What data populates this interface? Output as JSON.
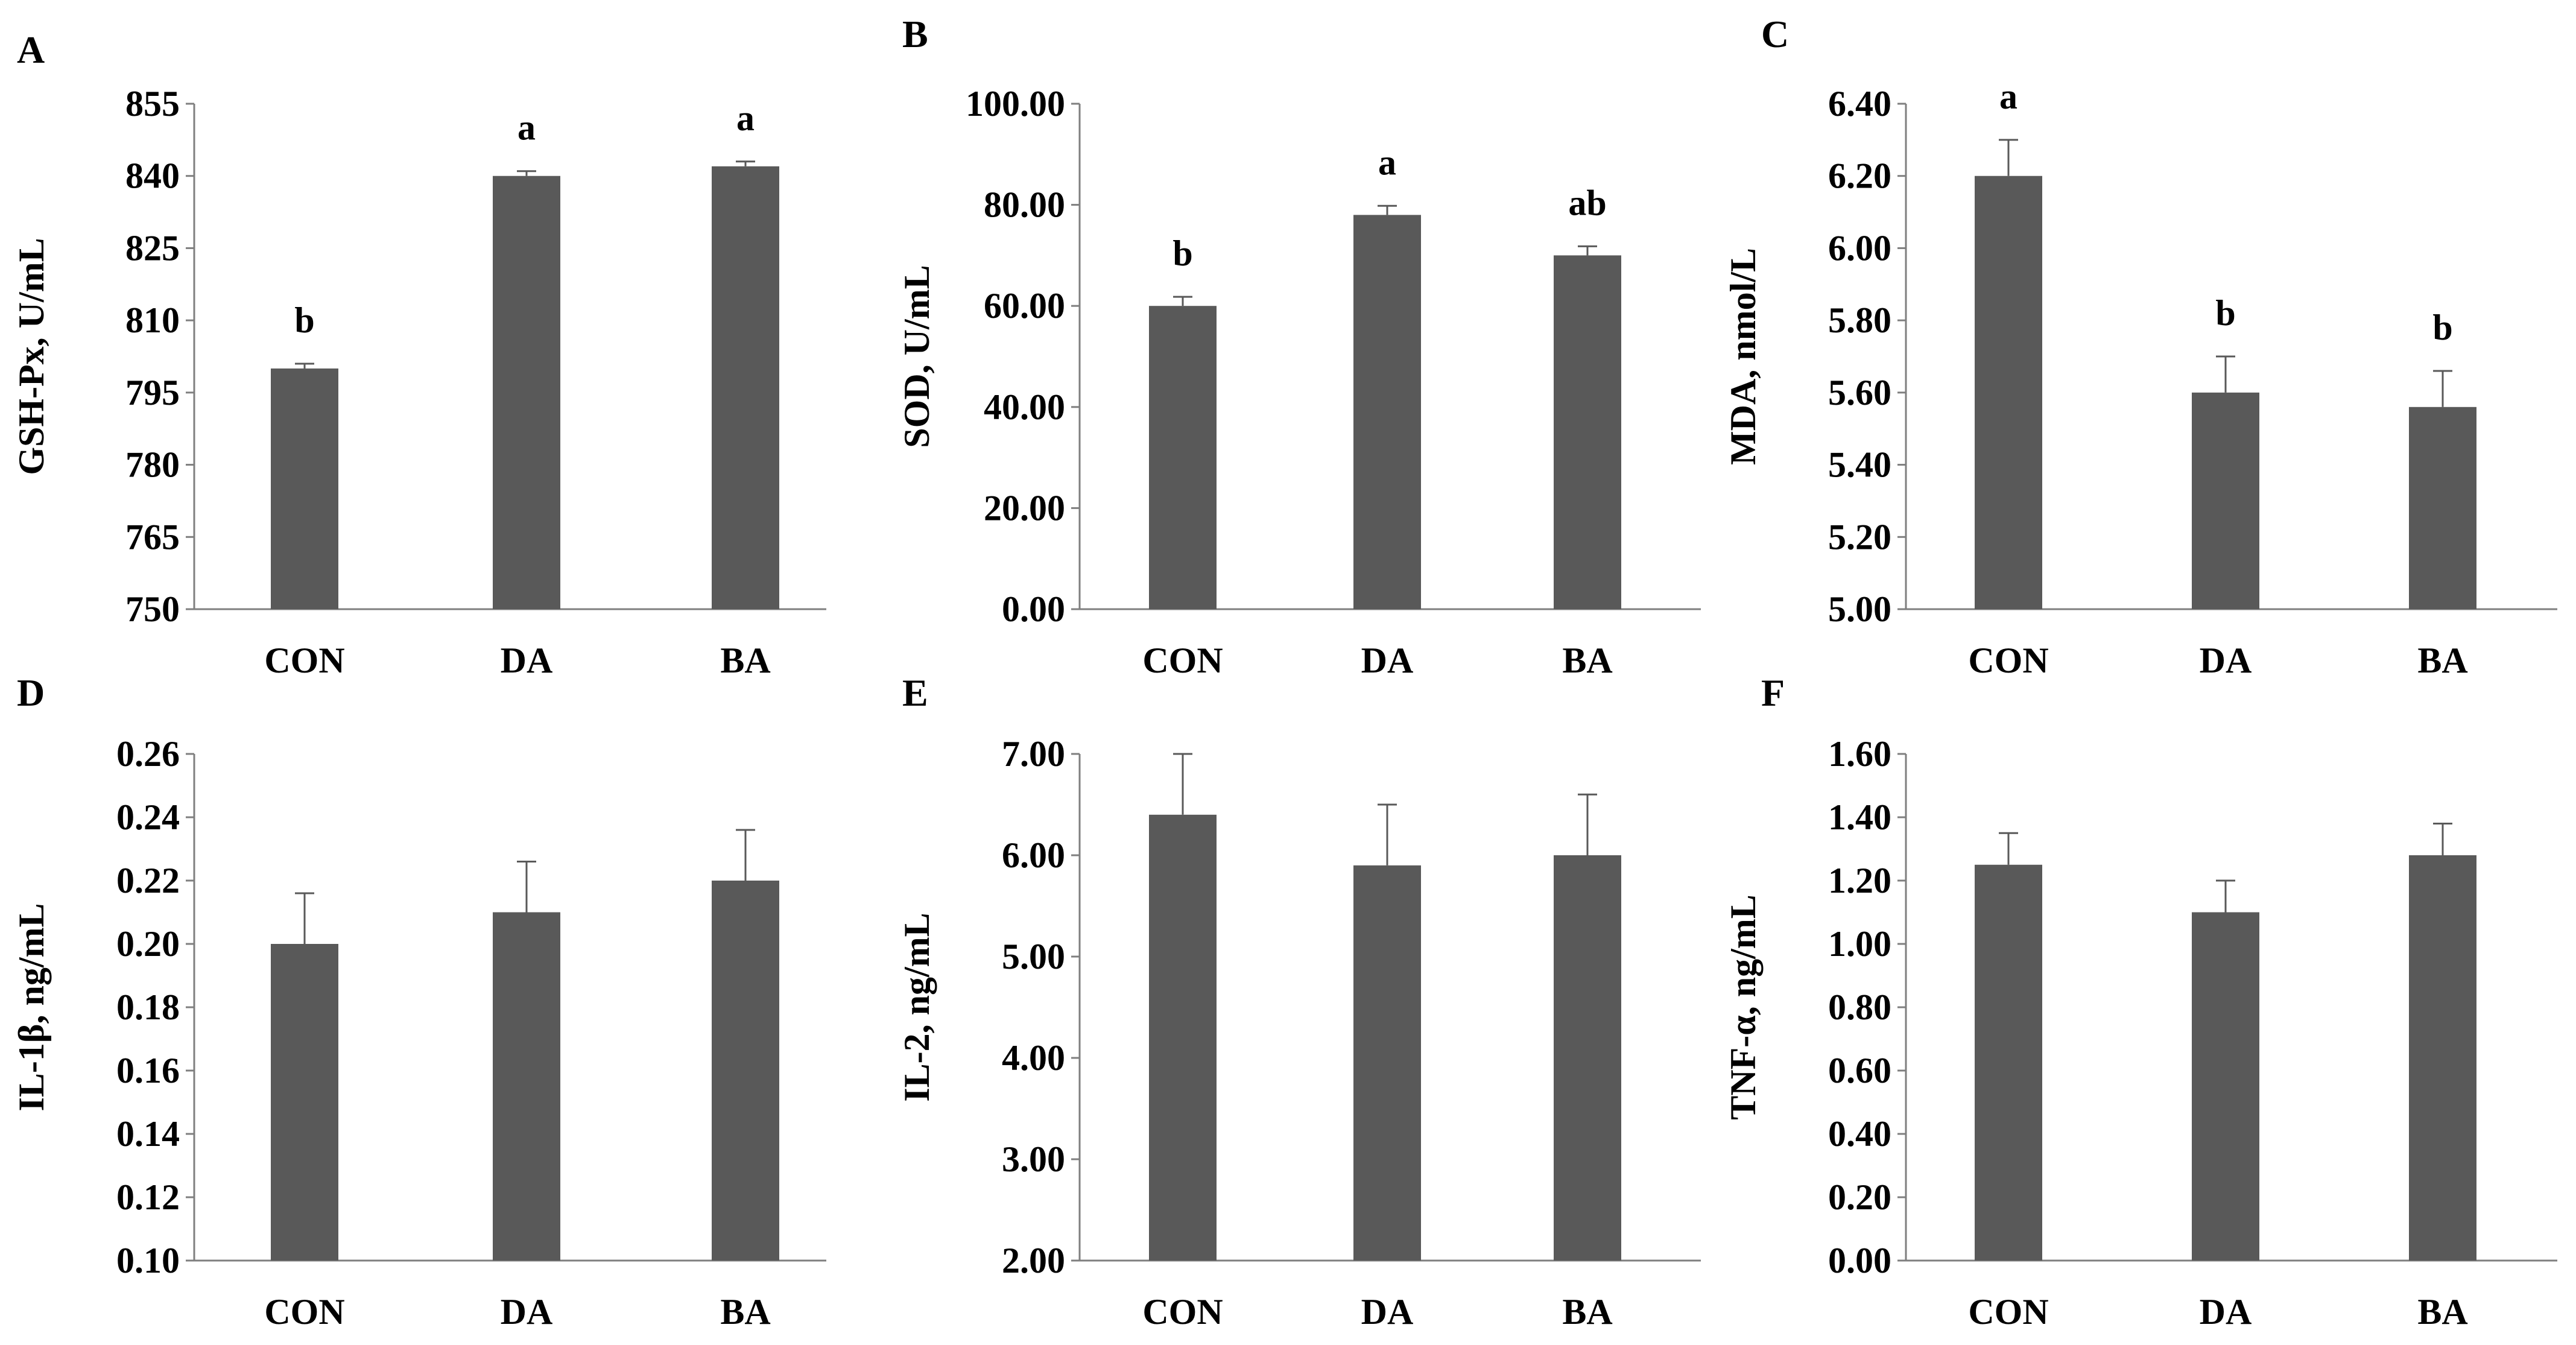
{
  "figure": {
    "bar_color": "#595959",
    "axis_color": "#7f7f7f",
    "errorbar_color": "#595959",
    "text_color": "#000000"
  },
  "chart_data": [
    {
      "panel": "A",
      "type": "bar",
      "categories": [
        "CON",
        "DA",
        "BA"
      ],
      "values": [
        800,
        840,
        842
      ],
      "errors": [
        1,
        1,
        1
      ],
      "letters": [
        "b",
        "a",
        "a"
      ],
      "ylabel": "GSH-Px, U/mL",
      "ylim": [
        750,
        855
      ],
      "yticks": [
        "750",
        "765",
        "780",
        "795",
        "810",
        "825",
        "840",
        "855"
      ]
    },
    {
      "panel": "B",
      "type": "bar",
      "categories": [
        "CON",
        "DA",
        "BA"
      ],
      "values": [
        60.0,
        78.0,
        70.0
      ],
      "errors": [
        1.8,
        1.8,
        1.8
      ],
      "letters": [
        "b",
        "a",
        "ab"
      ],
      "ylabel": "SOD, U/mL",
      "ylim": [
        0,
        100
      ],
      "yticks": [
        "0.00",
        "20.00",
        "40.00",
        "60.00",
        "80.00",
        "100.00"
      ]
    },
    {
      "panel": "C",
      "type": "bar",
      "categories": [
        "CON",
        "DA",
        "BA"
      ],
      "values": [
        6.2,
        5.6,
        5.56
      ],
      "errors": [
        0.1,
        0.1,
        0.1
      ],
      "letters": [
        "a",
        "b",
        "b"
      ],
      "ylabel": "MDA, nmol/L",
      "ylim": [
        5.0,
        6.4
      ],
      "yticks": [
        "5.00",
        "5.20",
        "5.40",
        "5.60",
        "5.80",
        "6.00",
        "6.20",
        "6.40"
      ]
    },
    {
      "panel": "D",
      "type": "bar",
      "categories": [
        "CON",
        "DA",
        "BA"
      ],
      "values": [
        0.2,
        0.21,
        0.22
      ],
      "errors": [
        0.016,
        0.016,
        0.016
      ],
      "letters": [
        "",
        "",
        ""
      ],
      "ylabel": "IL-1β, ng/mL",
      "ylim": [
        0.1,
        0.26
      ],
      "yticks": [
        "0.10",
        "0.12",
        "0.14",
        "0.16",
        "0.18",
        "0.20",
        "0.22",
        "0.24",
        "0.26"
      ]
    },
    {
      "panel": "E",
      "type": "bar",
      "categories": [
        "CON",
        "DA",
        "BA"
      ],
      "values": [
        6.4,
        5.9,
        6.0
      ],
      "errors": [
        0.6,
        0.6,
        0.6
      ],
      "letters": [
        "",
        "",
        ""
      ],
      "ylabel": "IL-2, ng/mL",
      "ylim": [
        2.0,
        7.0
      ],
      "yticks": [
        "2.00",
        "3.00",
        "4.00",
        "5.00",
        "6.00",
        "7.00"
      ]
    },
    {
      "panel": "F",
      "type": "bar",
      "categories": [
        "CON",
        "DA",
        "BA"
      ],
      "values": [
        1.25,
        1.1,
        1.28
      ],
      "errors": [
        0.1,
        0.1,
        0.1
      ],
      "letters": [
        "",
        "",
        ""
      ],
      "ylabel": "TNF-α, ng/mL",
      "ylim": [
        0.0,
        1.6
      ],
      "yticks": [
        "0.00",
        "0.20",
        "0.40",
        "0.60",
        "0.80",
        "1.00",
        "1.20",
        "1.40",
        "1.60"
      ]
    }
  ]
}
